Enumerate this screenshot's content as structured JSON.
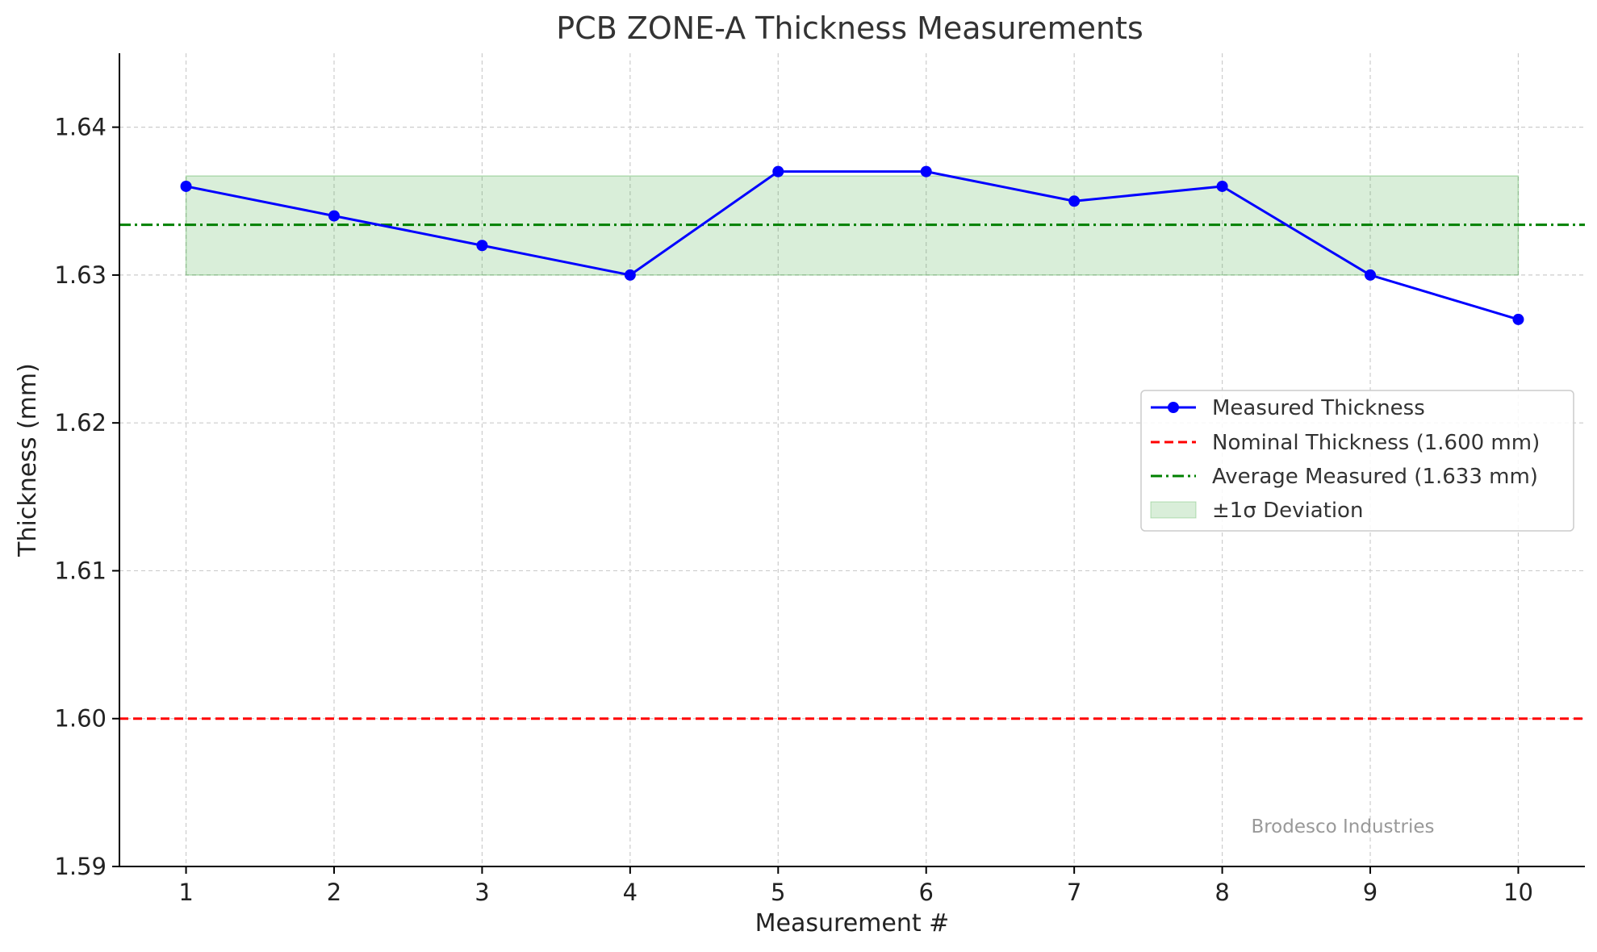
{
  "chart_data": {
    "type": "line",
    "title": "PCB ZONE-A Thickness Measurements",
    "xlabel": "Measurement #",
    "ylabel": "Thickness (mm)",
    "x": [
      1,
      2,
      3,
      4,
      5,
      6,
      7,
      8,
      9,
      10
    ],
    "xticks": [
      "1",
      "2",
      "3",
      "4",
      "5",
      "6",
      "7",
      "8",
      "9",
      "10"
    ],
    "xlim": [
      0.55,
      10.45
    ],
    "ylim": [
      1.59,
      1.645
    ],
    "yticks": [
      1.59,
      1.6,
      1.61,
      1.62,
      1.63,
      1.64
    ],
    "ytick_labels": [
      "1.59",
      "1.60",
      "1.61",
      "1.62",
      "1.63",
      "1.64"
    ],
    "grid": true,
    "legend_position": "center-right",
    "series": [
      {
        "name": "Measured Thickness",
        "values": [
          1.636,
          1.634,
          1.632,
          1.63,
          1.637,
          1.637,
          1.635,
          1.636,
          1.63,
          1.627
        ],
        "color": "#0000ff",
        "style": "solid-with-markers"
      }
    ],
    "reference_lines": [
      {
        "name": "Nominal Thickness (1.600 mm)",
        "value": 1.6,
        "color": "#ff0000",
        "style": "dashed"
      },
      {
        "name": "Average Measured (1.633 mm)",
        "value": 1.6334,
        "color": "#008000",
        "style": "dash-dot"
      }
    ],
    "band": {
      "name": "±1σ Deviation",
      "lower": 1.63,
      "upper": 1.6367,
      "x_from": 1,
      "x_to": 10,
      "color": "#2ca02c"
    },
    "annotation": "Brodesco Industries"
  }
}
